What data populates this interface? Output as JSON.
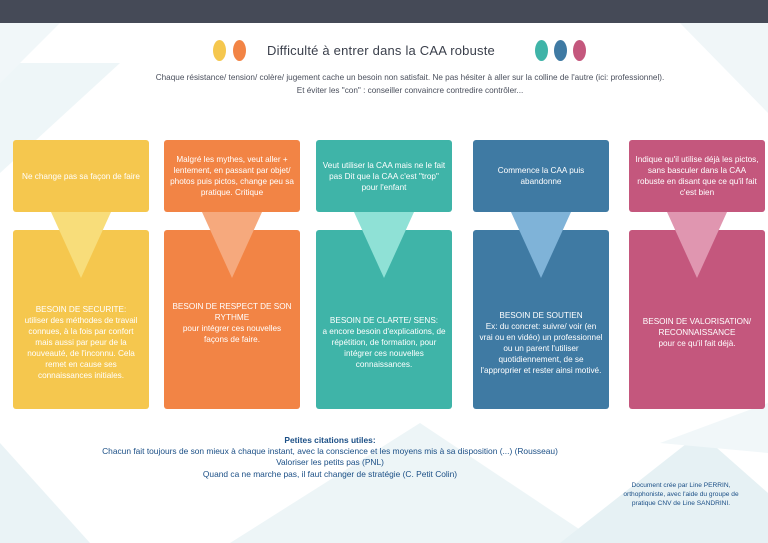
{
  "title": "Difficulté à entrer dans la CAA robuste",
  "subtitle_line1": "Chaque résistance/ tension/  colère/ jugement cache un besoin non satisfait. Ne pas hésiter à aller sur la colline de l'autre (ici: professionnel).",
  "subtitle_line2": "Et éviter les \"con\" : conseiller convaincre contredire contrôler...",
  "colors": {
    "yellow": "#f5c74e",
    "orange": "#f28445",
    "teal": "#3fb4a8",
    "blue": "#3f7aa3",
    "pink": "#c4577d",
    "dark_bar": "#454a57"
  },
  "columns": [
    {
      "top_text": "Ne change pas sa façon de faire",
      "bottom_title": "BESOIN DE SECURITE:",
      "bottom_text": "utiliser des méthodes de travail connues, à la fois par confort mais aussi par peur de la nouveauté, de l'inconnu. Cela remet en cause ses connaissances initiales."
    },
    {
      "top_text": "Malgré les mythes, veut aller + lentement, en passant par objet/ photos puis pictos, change peu sa pratique. Critique",
      "bottom_title": "BESOIN DE RESPECT DE SON RYTHME",
      "bottom_text": "pour intégrer ces nouvelles façons de faire."
    },
    {
      "top_text": "Veut utiliser la CAA mais ne le fait pas Dit que la CAA c'est \"trop\" pour l'enfant",
      "bottom_title": "BESOIN DE CLARTE/ SENS:",
      "bottom_text": "a encore besoin d'explications, de répétition, de formation, pour intégrer ces nouvelles connaissances."
    },
    {
      "top_text": "Commence la CAA puis abandonne",
      "bottom_title": "BESOIN DE SOUTIEN",
      "bottom_text": "Ex: du concret: suivre/ voir (en vrai ou en vidéo) un professionnel ou un parent l'utiliser quotidiennement, de se l'approprier et rester ainsi motivé."
    },
    {
      "top_text": "Indique qu'il utilise déjà les pictos, sans basculer dans la CAA robuste en disant que ce qu'il fait c'est bien",
      "bottom_title": "BESOIN DE VALORISATION/ RECONNAISSANCE",
      "bottom_text": "pour ce qu'il fait déjà."
    }
  ],
  "citations": {
    "heading": "Petites citations utiles:",
    "lines": [
      "Chacun fait toujours de son mieux à chaque instant, avec la conscience et les moyens mis à sa disposition (...) (Rousseau)",
      "Valoriser les petits pas (PNL)",
      "Quand ca ne marche pas, il faut changer de stratégie (C. Petit Colin)"
    ]
  },
  "credit": {
    "line1": "Document crée par Line PERRIN,",
    "line2": "orthophoniste, avec l'aide du groupe de",
    "line3": "pratique CNV de Line SANDRINI."
  }
}
